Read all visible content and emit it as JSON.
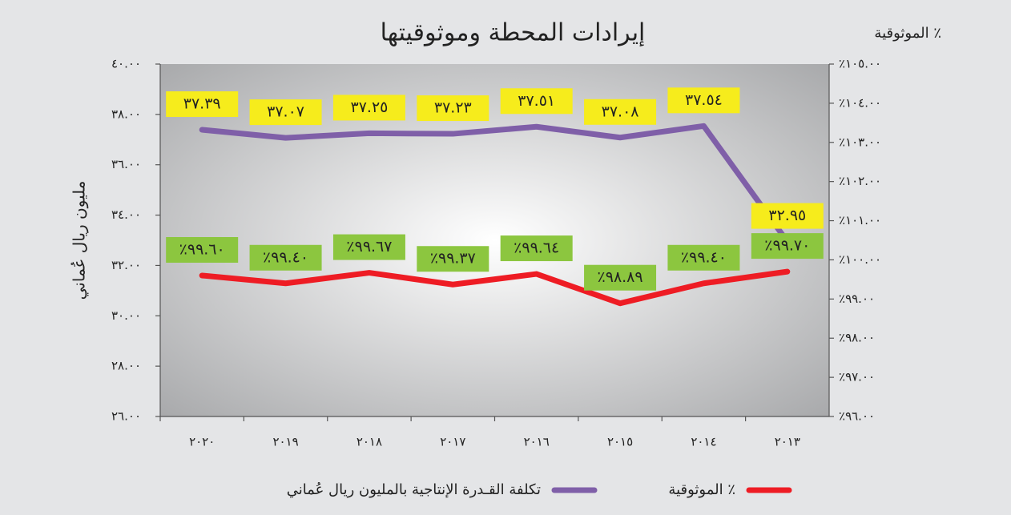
{
  "chart_data": {
    "type": "line",
    "title": "إيرادات المحطة وموثوقيتها",
    "y_label": "مليون ريال عُماني",
    "y2_label": "الموثوقية ٪",
    "categories": [
      "٢٠٢٠",
      "٢٠١٩",
      "٢٠١٨",
      "٢٠١٧",
      "٢٠١٦",
      "٢٠١٥",
      "٢٠١٤",
      "٢٠١٣"
    ],
    "series": [
      {
        "name": "تكلفة القـدرة الإنتاجية بالمليون ريال عُماني",
        "color": "#7f5fa8",
        "values": [
          37.39,
          37.07,
          37.25,
          37.23,
          37.51,
          37.08,
          37.54,
          32.95
        ],
        "value_labels": [
          "٣٧.٣٩",
          "٣٧.٠٧",
          "٣٧.٢٥",
          "٣٧.٢٣",
          "٣٧.٥١",
          "٣٧.٠٨",
          "٣٧.٥٤",
          "٣٢.٩٥"
        ],
        "label_color": "#f6ec1c"
      },
      {
        "name": "الموثوقية ٪",
        "color": "#ee1c24",
        "axis": "y2",
        "values": [
          99.6,
          99.4,
          99.67,
          99.37,
          99.64,
          98.89,
          99.4,
          99.7
        ],
        "value_labels": [
          "٪٩٩.٦٠",
          "٪٩٩.٤٠",
          "٪٩٩.٦٧",
          "٪٩٩.٣٧",
          "٪٩٩.٦٤",
          "٪٩٨.٨٩",
          "٪٩٩.٤٠",
          "٪٩٩.٧٠"
        ],
        "label_color": "#8cc63f"
      }
    ],
    "ylim": [
      26,
      40
    ],
    "yticks": [
      {
        "value": 26,
        "label": "٢٦.٠٠"
      },
      {
        "value": 28,
        "label": "٢٨.٠٠"
      },
      {
        "value": 30,
        "label": "٣٠.٠٠"
      },
      {
        "value": 32,
        "label": "٣٢.٠٠"
      },
      {
        "value": 34,
        "label": "٣٤.٠٠"
      },
      {
        "value": 36,
        "label": "٣٦.٠٠"
      },
      {
        "value": 38,
        "label": "٣٨.٠٠"
      },
      {
        "value": 40,
        "label": "٤٠.٠٠"
      }
    ],
    "y2lim": [
      96,
      105
    ],
    "y2ticks": [
      {
        "value": 96,
        "label": "٪٩٦.٠٠"
      },
      {
        "value": 97,
        "label": "٪٩٧.٠٠"
      },
      {
        "value": 98,
        "label": "٪٩٨.٠٠"
      },
      {
        "value": 99,
        "label": "٪٩٩.٠٠"
      },
      {
        "value": 100,
        "label": "٪١٠٠.٠٠"
      },
      {
        "value": 101,
        "label": "٪١٠١.٠٠"
      },
      {
        "value": 102,
        "label": "٪١٠٢.٠٠"
      },
      {
        "value": 103,
        "label": "٪١٠٣.٠٠"
      },
      {
        "value": 104,
        "label": "٪١٠٤.٠٠"
      },
      {
        "value": 105,
        "label": "٪١٠٥.٠٠"
      }
    ],
    "legend": "bottom"
  }
}
